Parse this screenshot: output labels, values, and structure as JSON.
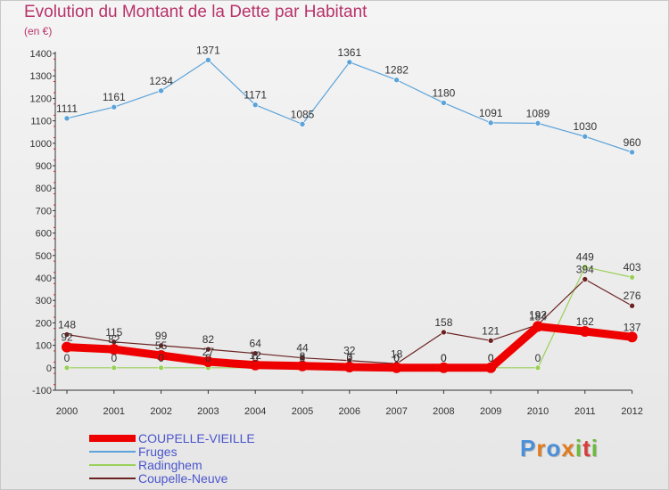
{
  "title": "Evolution du Montant de la Dette par Habitant",
  "subtitle": "(en €)",
  "chart_data": {
    "type": "line",
    "x": [
      "2000",
      "2001",
      "2002",
      "2003",
      "2004",
      "2005",
      "2006",
      "2007",
      "2008",
      "2009",
      "2010",
      "2011",
      "2012"
    ],
    "ylim": [
      -100,
      1400
    ],
    "yticks": [
      -100,
      0,
      100,
      200,
      300,
      400,
      500,
      600,
      700,
      800,
      900,
      1000,
      1100,
      1200,
      1300,
      1400
    ],
    "grid": false,
    "legend_position": "bottom",
    "series": [
      {
        "name": "COUPELLE-VIEILLE",
        "color": "#ee0000",
        "values": [
          92,
          82,
          55,
          27,
          12,
          8,
          3,
          0,
          0,
          0,
          184,
          162,
          137
        ],
        "labels": [
          "92",
          "82",
          "55",
          "27",
          "12",
          "8",
          "3",
          "0",
          "0",
          "0",
          "184",
          "162",
          "137"
        ]
      },
      {
        "name": "Fruges",
        "color": "#5ca3d9",
        "values": [
          1111,
          1161,
          1234,
          1371,
          1171,
          1085,
          1361,
          1282,
          1180,
          1091,
          1089,
          1030,
          960
        ],
        "labels": [
          "1111",
          "1161",
          "1234",
          "1371",
          "1171",
          "1085",
          "1361",
          "1282",
          "1180",
          "1091",
          "1089",
          "1030",
          "960"
        ]
      },
      {
        "name": "Radinghem",
        "color": "#9ad05a",
        "values": [
          0,
          0,
          0,
          0,
          0,
          0,
          0,
          0,
          0,
          0,
          0,
          449,
          403
        ],
        "labels": [
          "0",
          "0",
          "0",
          "0",
          "0",
          "0",
          "0",
          "0",
          "0",
          "0",
          "0",
          "449",
          "403"
        ]
      },
      {
        "name": "Coupelle-Neuve",
        "color": "#6b2222",
        "values": [
          148,
          115,
          99,
          82,
          64,
          44,
          32,
          18,
          158,
          121,
          192,
          394,
          276
        ],
        "labels": [
          "148",
          "115",
          "99",
          "82",
          "64",
          "44",
          "32",
          "18",
          "158",
          "121",
          "192",
          "394",
          "276"
        ]
      }
    ]
  },
  "logo": {
    "letters": [
      "P",
      "r",
      "o",
      "x",
      "i",
      "t",
      "i"
    ],
    "colors": [
      "#4a8fd8",
      "#e07b1e",
      "#4a8fd8",
      "#e07b1e",
      "#6cba3c",
      "#d83c3c",
      "#6cba3c"
    ]
  }
}
